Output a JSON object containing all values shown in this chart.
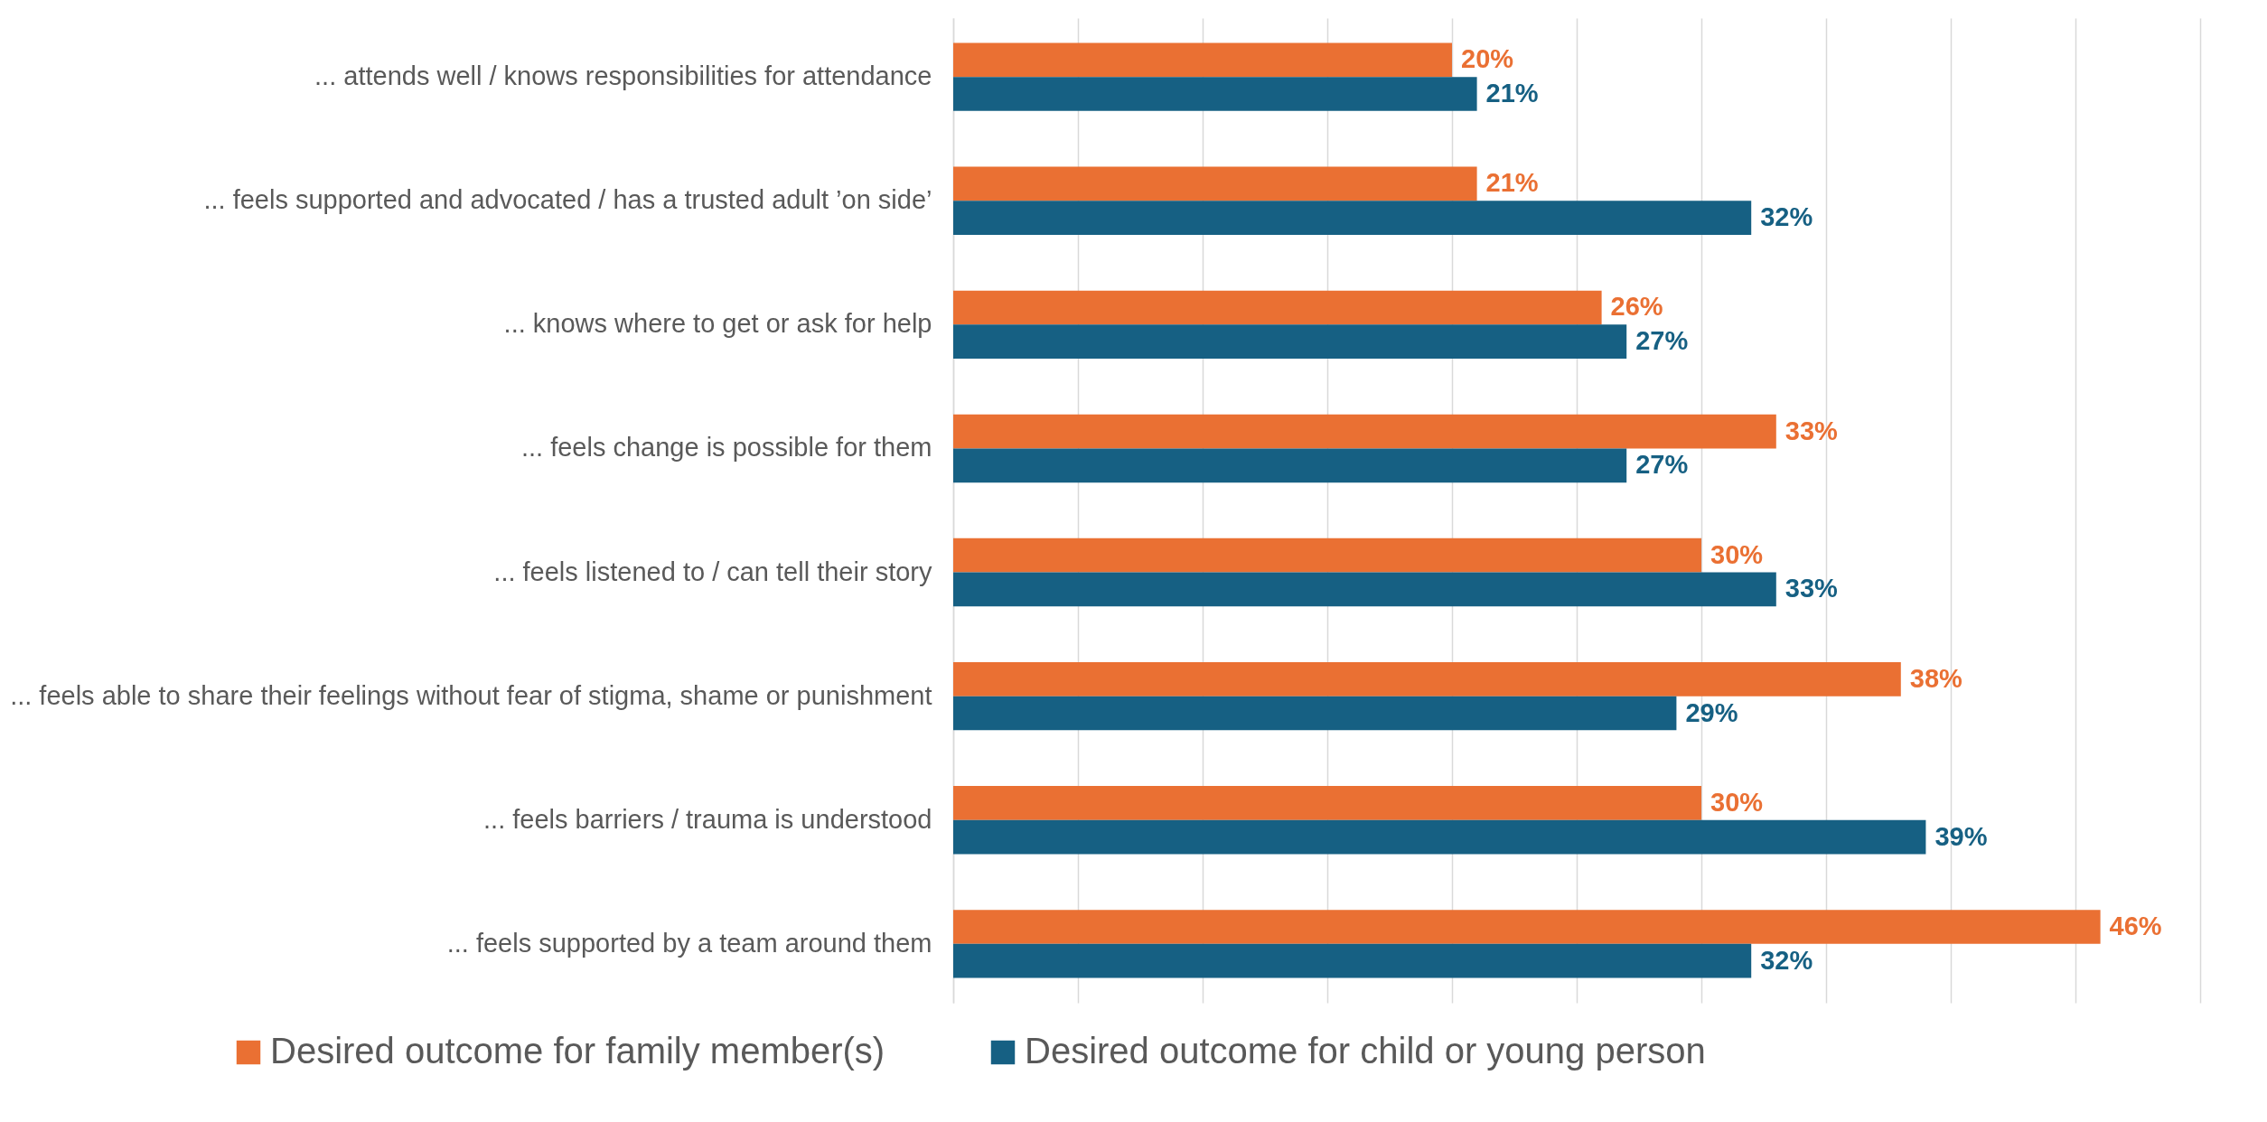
{
  "chart_data": {
    "type": "bar",
    "orientation": "horizontal",
    "categories": [
      "... attends well / knows responsibilities for attendance",
      "... feels supported and advocated / has a trusted adult ’on side’",
      "... knows where to get or ask for help",
      "... feels change is possible for them",
      "... feels listened to / can tell their story",
      "... feels able to share their feelings without fear of stigma, shame or punishment",
      "... feels barriers / trauma is understood",
      "... feels supported by a team around them"
    ],
    "series": [
      {
        "name": "Desired outcome for family member(s)",
        "color": "#ea7033",
        "values": [
          20,
          21,
          26,
          33,
          30,
          38,
          30,
          46
        ],
        "value_labels": [
          "20%",
          "21%",
          "26%",
          "33%",
          "30%",
          "38%",
          "30%",
          "46%"
        ]
      },
      {
        "name": "Desired outcome for child or young person",
        "color": "#166083",
        "values": [
          21,
          32,
          27,
          27,
          33,
          29,
          39,
          32
        ],
        "value_labels": [
          "21%",
          "32%",
          "27%",
          "27%",
          "33%",
          "29%",
          "39%",
          "32%"
        ]
      }
    ],
    "xlim": [
      0,
      50
    ],
    "xticks": [
      {
        "value": 0,
        "label": null
      },
      {
        "value": 5,
        "label": null
      },
      {
        "value": 10,
        "label": null
      },
      {
        "value": 15,
        "label": null
      },
      {
        "value": 20,
        "label": null
      },
      {
        "value": 25,
        "label": null
      },
      {
        "value": 30,
        "label": null
      },
      {
        "value": 35,
        "label": null
      },
      {
        "value": 40,
        "label": null
      },
      {
        "value": 45,
        "label": null
      },
      {
        "value": 50,
        "label": null
      }
    ],
    "tick_labels": "y",
    "grid": "x",
    "legend": "bottom"
  }
}
